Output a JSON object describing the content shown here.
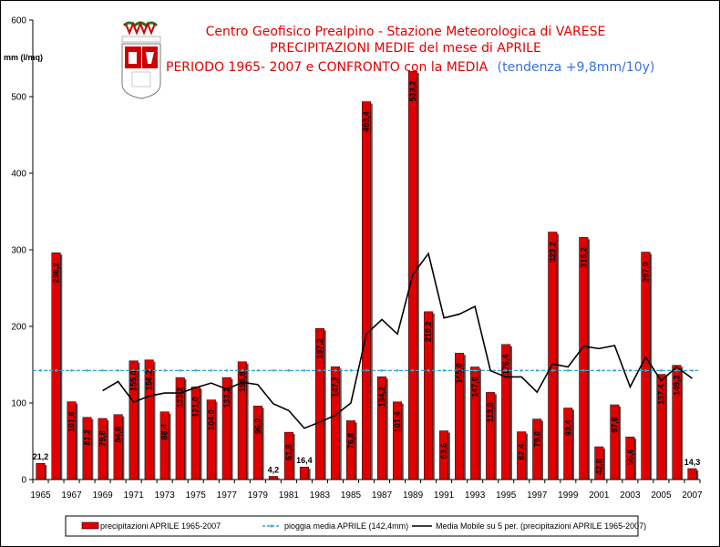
{
  "chart_data": {
    "type": "bar",
    "title_lines": [
      "Centro Geofisico Prealpino - Stazione Meteorologica di VARESE",
      "PRECIPITAZIONI MEDIE del mese di APRILE",
      "PERIODO 1965- 2007 e CONFRONTO con la MEDIA"
    ],
    "trend_note": "(tendenza +9,8mm/10y)",
    "ylabel": "mm (l/mq)",
    "ylim": [
      0,
      600
    ],
    "yticks": [
      0,
      100,
      200,
      300,
      400,
      500,
      600
    ],
    "x_tick_labels": [
      "1965",
      "1967",
      "1969",
      "1971",
      "1973",
      "1975",
      "1977",
      "1979",
      "1981",
      "1983",
      "1985",
      "1987",
      "1989",
      "1991",
      "1993",
      "1995",
      "1997",
      "1999",
      "2001",
      "2003",
      "2005",
      "2007"
    ],
    "x": [
      1965,
      1966,
      1967,
      1968,
      1969,
      1970,
      1971,
      1972,
      1973,
      1974,
      1975,
      1976,
      1977,
      1978,
      1979,
      1980,
      1981,
      1982,
      1983,
      1984,
      1985,
      1986,
      1987,
      1988,
      1989,
      1990,
      1991,
      1992,
      1993,
      1994,
      1995,
      1996,
      1997,
      1998,
      1999,
      2000,
      2001,
      2002,
      2003,
      2004,
      2005,
      2006,
      2007
    ],
    "series": [
      {
        "name": "precipitazioni APRILE 1965-2007",
        "color": "#e00000",
        "values": [
          21.2,
          296.2,
          101.6,
          81.2,
          79.8,
          84.8,
          155.0,
          156.2,
          88.4,
          133.2,
          121.0,
          104.0,
          133.2,
          153.8,
          96.0,
          4.2,
          61.8,
          16.4,
          197.2,
          147.2,
          76.8,
          493.4,
          134.2,
          101.4,
          533.2,
          219.2,
          63.6,
          165.0,
          147.0,
          113.8,
          176.4,
          62.4,
          79.0,
          323.2,
          93.4,
          316.2,
          42.8,
          97.6,
          55.6,
          297.0,
          137.4,
          149.2,
          14.3
        ],
        "labels": [
          "21,2",
          "296,2",
          "101,6",
          "81,2",
          "79,8",
          "84,8",
          "155,0",
          "156,2",
          "88,4",
          "133,2",
          "121,0",
          "104,0",
          "133,2",
          "153,8",
          "96,0",
          "4,2",
          "61,8",
          "16,4",
          "197,2",
          "147,2",
          "76,8",
          "493,4",
          "134,2",
          "101,4",
          "533,2",
          "219,2",
          "63,6",
          "165,0",
          "147,0",
          "113,8",
          "176,4",
          "62,4",
          "79,0",
          "323,2",
          "93,4",
          "316,2",
          "42,8",
          "97,6",
          "55,6",
          "297,0",
          "137,4",
          "149,2",
          "14,3"
        ]
      },
      {
        "name": "pioggia media APRILE (142,4mm)",
        "color": "#33aacc",
        "value": 142.4
      },
      {
        "name": "Media Mobile su 5 per. (precipitazioni APRILE 1965-2007)",
        "color": "#000000",
        "x": [
          1969,
          1970,
          1971,
          1972,
          1973,
          1974,
          1975,
          1976,
          1977,
          1978,
          1979,
          1980,
          1981,
          1982,
          1983,
          1984,
          1985,
          1986,
          1987,
          1988,
          1989,
          1990,
          1991,
          1992,
          1993,
          1994,
          1995,
          1996,
          1997,
          1998,
          1999,
          2000,
          2001,
          2002,
          2003,
          2004,
          2005,
          2006,
          2007
        ],
        "values": [
          116,
          128,
          101,
          109,
          113,
          113,
          120,
          126,
          118,
          127,
          124,
          99,
          90,
          67,
          75,
          84,
          100,
          190,
          209,
          190,
          268,
          295,
          211,
          216,
          226,
          142,
          134,
          134,
          114,
          151,
          147,
          174,
          171,
          175,
          121,
          160,
          129,
          147,
          132
        ]
      }
    ],
    "legend_position": "bottom",
    "grid": false
  },
  "logo": {
    "name": "varese-coat-of-arms-icon",
    "colors": [
      "#cc0000",
      "#ffffff",
      "#1a7a1a"
    ]
  }
}
